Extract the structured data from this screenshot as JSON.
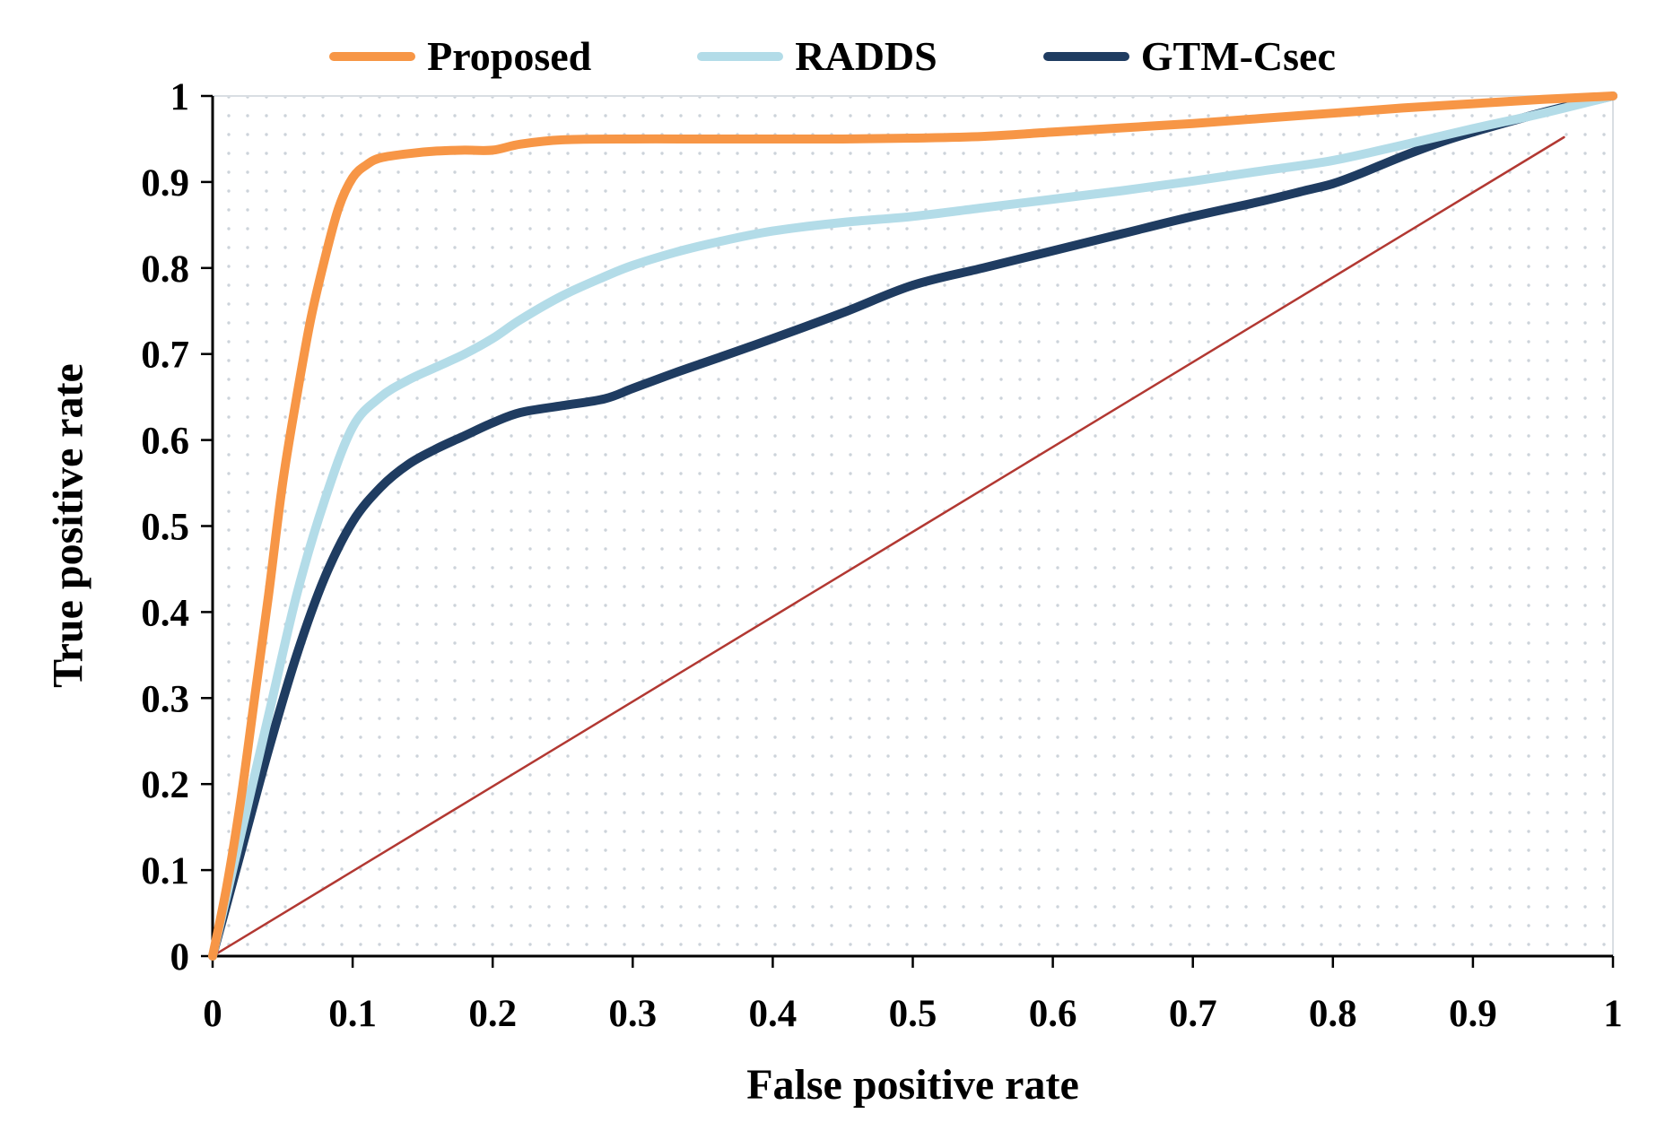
{
  "chart_data": {
    "type": "line",
    "title": "",
    "xlabel": "False positive rate",
    "ylabel": "True positive rate",
    "xlim": [
      0,
      1
    ],
    "ylim": [
      0,
      1
    ],
    "grid": "dotted-background",
    "legend_position": "top",
    "x_ticks": [
      "0",
      "0.1",
      "0.2",
      "0.3",
      "0.4",
      "0.5",
      "0.6",
      "0.7",
      "0.8",
      "0.9",
      "1"
    ],
    "x_tick_values": [
      0,
      0.1,
      0.2,
      0.3,
      0.4,
      0.5,
      0.6,
      0.7,
      0.8,
      0.9,
      1
    ],
    "y_ticks": [
      "0",
      "0.1",
      "0.2",
      "0.3",
      "0.4",
      "0.5",
      "0.6",
      "0.7",
      "0.8",
      "0.9",
      "1"
    ],
    "y_tick_values": [
      0,
      0.1,
      0.2,
      0.3,
      0.4,
      0.5,
      0.6,
      0.7,
      0.8,
      0.9,
      1
    ],
    "background": {
      "pattern": "dotted",
      "dot_color": "#ccd3da",
      "fill": "#ffffff"
    },
    "axis_color": "#000000",
    "border_color": "#d9dee3",
    "series": [
      {
        "name": "Proposed",
        "color": "#F79646",
        "width": 10,
        "points": [
          [
            0,
            0
          ],
          [
            0.01,
            0.08
          ],
          [
            0.02,
            0.18
          ],
          [
            0.03,
            0.3
          ],
          [
            0.04,
            0.42
          ],
          [
            0.05,
            0.55
          ],
          [
            0.06,
            0.65
          ],
          [
            0.07,
            0.74
          ],
          [
            0.08,
            0.81
          ],
          [
            0.09,
            0.87
          ],
          [
            0.1,
            0.905
          ],
          [
            0.11,
            0.92
          ],
          [
            0.12,
            0.928
          ],
          [
            0.14,
            0.933
          ],
          [
            0.16,
            0.936
          ],
          [
            0.18,
            0.937
          ],
          [
            0.2,
            0.937
          ],
          [
            0.22,
            0.944
          ],
          [
            0.25,
            0.949
          ],
          [
            0.3,
            0.95
          ],
          [
            0.35,
            0.95
          ],
          [
            0.4,
            0.95
          ],
          [
            0.45,
            0.95
          ],
          [
            0.5,
            0.951
          ],
          [
            0.55,
            0.953
          ],
          [
            0.6,
            0.958
          ],
          [
            0.65,
            0.963
          ],
          [
            0.7,
            0.968
          ],
          [
            0.75,
            0.974
          ],
          [
            0.8,
            0.98
          ],
          [
            0.85,
            0.986
          ],
          [
            0.9,
            0.991
          ],
          [
            0.95,
            0.996
          ],
          [
            1,
            1
          ]
        ]
      },
      {
        "name": "RADDS",
        "color": "#B3DCE8",
        "width": 10,
        "points": [
          [
            0,
            0
          ],
          [
            0.02,
            0.14
          ],
          [
            0.04,
            0.28
          ],
          [
            0.06,
            0.42
          ],
          [
            0.08,
            0.53
          ],
          [
            0.1,
            0.615
          ],
          [
            0.12,
            0.65
          ],
          [
            0.14,
            0.67
          ],
          [
            0.16,
            0.685
          ],
          [
            0.18,
            0.7
          ],
          [
            0.2,
            0.718
          ],
          [
            0.22,
            0.74
          ],
          [
            0.25,
            0.768
          ],
          [
            0.28,
            0.79
          ],
          [
            0.3,
            0.803
          ],
          [
            0.33,
            0.818
          ],
          [
            0.36,
            0.83
          ],
          [
            0.4,
            0.843
          ],
          [
            0.45,
            0.853
          ],
          [
            0.5,
            0.86
          ],
          [
            0.55,
            0.87
          ],
          [
            0.6,
            0.88
          ],
          [
            0.65,
            0.89
          ],
          [
            0.7,
            0.901
          ],
          [
            0.75,
            0.913
          ],
          [
            0.8,
            0.925
          ],
          [
            0.85,
            0.943
          ],
          [
            0.9,
            0.962
          ],
          [
            0.95,
            0.98
          ],
          [
            1,
            1
          ]
        ]
      },
      {
        "name": "GTM-Csec",
        "color": "#1F3C61",
        "width": 10,
        "points": [
          [
            0,
            0
          ],
          [
            0.02,
            0.12
          ],
          [
            0.04,
            0.24
          ],
          [
            0.06,
            0.35
          ],
          [
            0.08,
            0.44
          ],
          [
            0.1,
            0.505
          ],
          [
            0.12,
            0.545
          ],
          [
            0.14,
            0.572
          ],
          [
            0.16,
            0.59
          ],
          [
            0.18,
            0.605
          ],
          [
            0.2,
            0.62
          ],
          [
            0.22,
            0.632
          ],
          [
            0.25,
            0.64
          ],
          [
            0.28,
            0.648
          ],
          [
            0.3,
            0.66
          ],
          [
            0.33,
            0.678
          ],
          [
            0.36,
            0.695
          ],
          [
            0.4,
            0.718
          ],
          [
            0.45,
            0.748
          ],
          [
            0.5,
            0.78
          ],
          [
            0.55,
            0.8
          ],
          [
            0.6,
            0.82
          ],
          [
            0.65,
            0.84
          ],
          [
            0.7,
            0.86
          ],
          [
            0.75,
            0.878
          ],
          [
            0.78,
            0.89
          ],
          [
            0.8,
            0.898
          ],
          [
            0.82,
            0.91
          ],
          [
            0.85,
            0.93
          ],
          [
            0.88,
            0.948
          ],
          [
            0.9,
            0.958
          ],
          [
            0.93,
            0.972
          ],
          [
            0.96,
            0.985
          ],
          [
            1,
            1
          ]
        ]
      }
    ],
    "reference_line": {
      "name": "chance-diagonal",
      "color": "#B23832",
      "width": 2.5,
      "points": [
        [
          0,
          0
        ],
        [
          0.965,
          0.952
        ]
      ]
    }
  }
}
